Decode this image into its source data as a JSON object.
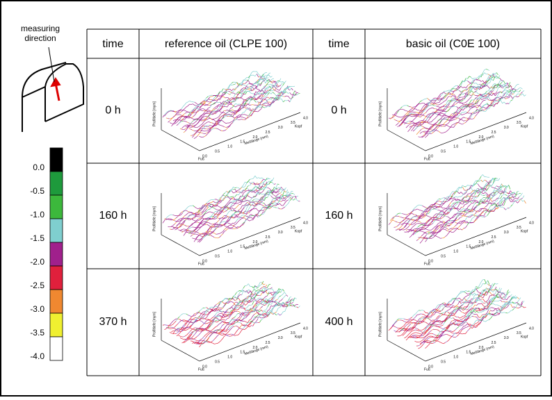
{
  "direction_label": "measuring\ndirection",
  "scale": {
    "labels": [
      "0.0",
      "-0.5",
      "-1.0",
      "-1.5",
      "-2.0",
      "-2.5",
      "-3.0",
      "-3.5",
      "-4.0"
    ],
    "colors": [
      "#000000",
      "#1e9a3c",
      "#3cb83c",
      "#7fcfcf",
      "#a0208c",
      "#e0203c",
      "#f08830",
      "#f0f030",
      "#ffffff"
    ]
  },
  "table": {
    "header": [
      "time",
      "reference oil (CLPE 100)",
      "time",
      "basic oil (C0E 100)"
    ],
    "rows": [
      [
        "0 h",
        "0 h"
      ],
      [
        "160 h",
        "160 h"
      ],
      [
        "370 h",
        "400 h"
      ]
    ]
  },
  "plot": {
    "ylabel": "Profiltiefe [mym]",
    "xlabel": "Meßlänge (mm)",
    "foot": "Fuß",
    "head": "Kopf",
    "xticks": [
      "0.0",
      "0.5",
      "1.0",
      "1.5",
      "2.0",
      "2.5",
      "3.0",
      "3.5",
      "4.0"
    ]
  }
}
